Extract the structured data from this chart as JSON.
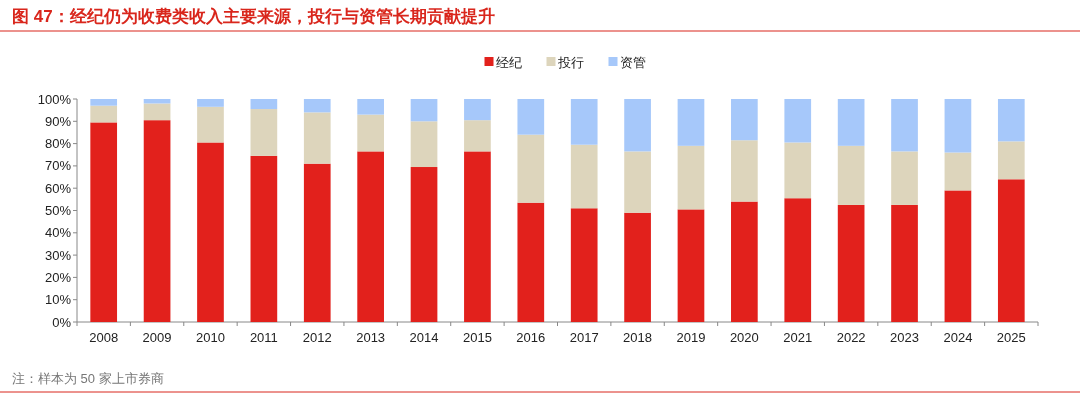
{
  "chart_data": {
    "type": "bar",
    "title": "图 47：经纪仍为收费类收入主要来源，投行与资管长期贡献提升",
    "categories": [
      "2008",
      "2009",
      "2010",
      "2011",
      "2012",
      "2013",
      "2014",
      "2015",
      "2016",
      "2017",
      "2018",
      "2019",
      "2020",
      "2021",
      "2022",
      "2023",
      "2024",
      "2025"
    ],
    "series": [
      {
        "name": "经纪",
        "color": "#e2211c",
        "values": [
          89.5,
          90.5,
          80.5,
          74.5,
          71,
          76.5,
          69.5,
          76.5,
          53.5,
          51,
          49,
          50.5,
          54,
          55.5,
          52.5,
          52.5,
          59,
          64
        ]
      },
      {
        "name": "投行",
        "color": "#ddd5bc",
        "values": [
          7.5,
          7.5,
          16,
          21,
          23,
          16.5,
          20.5,
          14,
          30.5,
          28.5,
          27.5,
          28.5,
          27.5,
          25,
          26.5,
          24,
          17,
          17
        ]
      },
      {
        "name": "资管",
        "color": "#a6c8fa",
        "values": [
          3,
          2,
          3.5,
          4.5,
          6,
          7,
          10,
          9.5,
          16,
          20.5,
          23.5,
          21,
          18.5,
          19.5,
          21,
          23.5,
          24,
          19
        ]
      }
    ],
    "stacked": true,
    "legend": "top",
    "ylim": [
      0,
      100
    ],
    "yticks": [
      {
        "value": 0,
        "label": "0%"
      },
      {
        "value": 10,
        "label": "10%"
      },
      {
        "value": 20,
        "label": "20%"
      },
      {
        "value": 30,
        "label": "30%"
      },
      {
        "value": 40,
        "label": "40%"
      },
      {
        "value": 50,
        "label": "50%"
      },
      {
        "value": 60,
        "label": "60%"
      },
      {
        "value": 70,
        "label": "70%"
      },
      {
        "value": 80,
        "label": "80%"
      },
      {
        "value": 90,
        "label": "90%"
      },
      {
        "value": 100,
        "label": "100%"
      }
    ],
    "annotations": [
      "注：样本为 50 家上市券商"
    ]
  }
}
